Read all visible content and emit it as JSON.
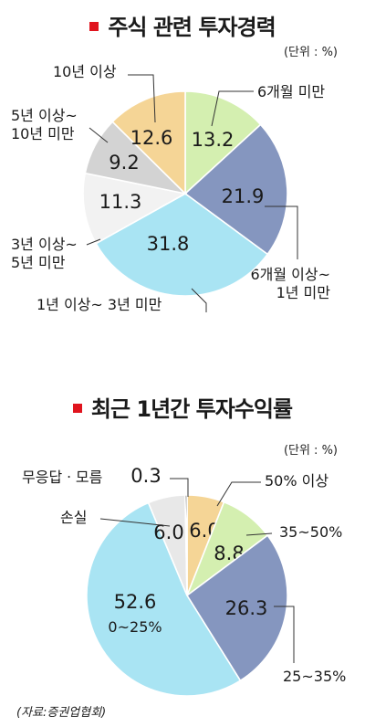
{
  "chart_data": [
    {
      "type": "pie",
      "title": "주식 관련 투자경력",
      "unit_label": "(단위 : %)",
      "slices": [
        {
          "label": [
            "6개월 미만"
          ],
          "value": 13.2,
          "value_text": "13.2",
          "color": "#d4efb0"
        },
        {
          "label": [
            "6개월 이상~",
            "1년 미만"
          ],
          "value": 21.9,
          "value_text": "21.9",
          "color": "#8596bf"
        },
        {
          "label": [
            "1년 이상~ 3년 미만"
          ],
          "value": 31.8,
          "value_text": "31.8",
          "color": "#a9e4f3"
        },
        {
          "label": [
            "3년 이상~",
            "5년 미만"
          ],
          "value": 11.3,
          "value_text": "11.3",
          "color": "#f2f2f2"
        },
        {
          "label": [
            "5년 이상~",
            "10년 미만"
          ],
          "value": 9.2,
          "value_text": "9.2",
          "color": "#d3d3d3"
        },
        {
          "label": [
            "10년 이상"
          ],
          "value": 12.6,
          "value_text": "12.6",
          "color": "#f5d596"
        }
      ]
    },
    {
      "type": "pie",
      "title": "최근 1년간 투자수익률",
      "unit_label": "(단위 : %)",
      "slices": [
        {
          "label": [
            "50% 이상"
          ],
          "value": 6.0,
          "value_text": "6.0",
          "color": "#f5d596"
        },
        {
          "label": [
            "35~50%"
          ],
          "value": 8.8,
          "value_text": "8.8",
          "color": "#d4efb0"
        },
        {
          "label": [
            "25~35%"
          ],
          "value": 26.3,
          "value_text": "26.3",
          "color": "#8596bf"
        },
        {
          "label": [
            "0~25%"
          ],
          "value": 52.6,
          "value_text": "52.6",
          "color": "#a9e4f3"
        },
        {
          "label": [
            "손실"
          ],
          "value": 6.0,
          "value_text": "6.0",
          "color": "#e8e8e8"
        },
        {
          "label": [
            "무응답ㆍ모름"
          ],
          "value": 0.3,
          "value_text": "0.3",
          "color": "#333333"
        }
      ]
    }
  ],
  "source": "(자료:증권업협회)"
}
